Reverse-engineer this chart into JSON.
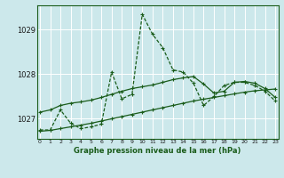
{
  "title": "Graphe pression niveau de la mer (hPa)",
  "bg_color": "#cce8eb",
  "grid_color": "#b0d4d8",
  "line_color": "#1a5c1a",
  "x_labels": [
    "0",
    "1",
    "2",
    "3",
    "4",
    "5",
    "6",
    "7",
    "8",
    "9",
    "10",
    "11",
    "12",
    "13",
    "14",
    "15",
    "16",
    "17",
    "18",
    "19",
    "20",
    "21",
    "22",
    "23"
  ],
  "ylim": [
    1026.55,
    1029.55
  ],
  "yticks": [
    1027,
    1028,
    1029
  ],
  "main_values": [
    1026.75,
    1026.75,
    1027.2,
    1026.9,
    1026.78,
    1026.82,
    1026.88,
    1028.05,
    1027.45,
    1027.55,
    1029.35,
    1028.9,
    1028.6,
    1028.1,
    1028.05,
    1027.8,
    1027.3,
    1027.5,
    1027.75,
    1027.82,
    1027.82,
    1027.75,
    1027.62,
    1027.4
  ],
  "upper_line": [
    1027.15,
    1027.2,
    1027.3,
    1027.35,
    1027.38,
    1027.42,
    1027.48,
    1027.55,
    1027.62,
    1027.68,
    1027.72,
    1027.76,
    1027.82,
    1027.88,
    1027.92,
    1027.95,
    1027.78,
    1027.58,
    1027.62,
    1027.82,
    1027.84,
    1027.8,
    1027.68,
    1027.48
  ],
  "lower_line": [
    1026.72,
    1026.74,
    1026.78,
    1026.82,
    1026.86,
    1026.9,
    1026.95,
    1027.0,
    1027.05,
    1027.1,
    1027.15,
    1027.2,
    1027.25,
    1027.3,
    1027.35,
    1027.4,
    1027.44,
    1027.48,
    1027.52,
    1027.56,
    1027.6,
    1027.63,
    1027.65,
    1027.67
  ]
}
